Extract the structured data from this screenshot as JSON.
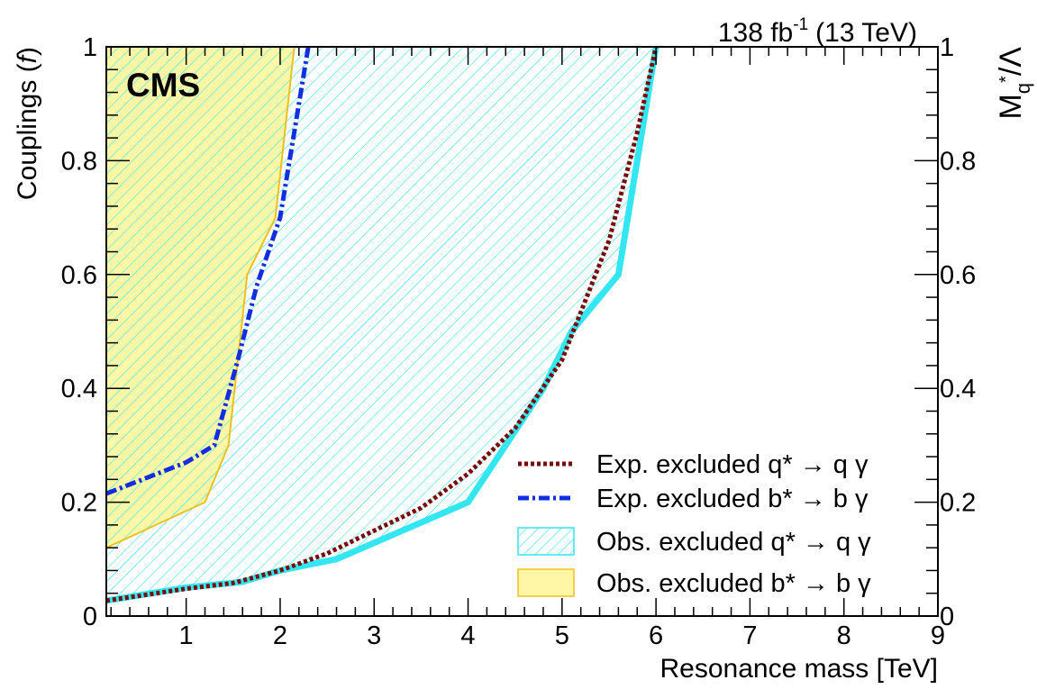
{
  "header": {
    "lumi_value": "138 fb",
    "lumi_exp": "-1",
    "energy": "(13 TeV)",
    "experiment": "CMS"
  },
  "axes": {
    "xlabel": "Resonance mass [TeV]",
    "ylabel_main": "Couplings (",
    "ylabel_italic": "f",
    "ylabel_close": ")",
    "ylabel_right_M": "M",
    "ylabel_right_q": "q",
    "ylabel_right_star": "*",
    "ylabel_right_rest": "/Λ",
    "x_ticks": [
      "1",
      "2",
      "3",
      "4",
      "5",
      "6",
      "7",
      "8",
      "9"
    ],
    "y_ticks": [
      "0",
      "0.2",
      "0.4",
      "0.6",
      "0.8",
      "1"
    ],
    "y2_ticks": [
      "0",
      "0.2",
      "0.4",
      "0.6",
      "0.8",
      "1"
    ]
  },
  "legend": [
    {
      "label": "Exp. excluded q* → q γ",
      "style": "dotted",
      "color": "#7a0b0b"
    },
    {
      "label": "Exp. excluded b* → b γ",
      "style": "dashdot",
      "color": "#1030e0"
    },
    {
      "label": "Obs. excluded q* → q γ",
      "style": "hatch",
      "color": "#33e6f2"
    },
    {
      "label": "Obs. excluded b* → b γ",
      "style": "fill",
      "color": "#fff7a6"
    }
  ],
  "colors": {
    "cyan": "#33e6f2",
    "yellow_fill": "#fff7a6",
    "yellow_line": "#f0c020",
    "exp_q": "#7a0b0b",
    "exp_b": "#1030e0"
  },
  "chart_data": {
    "type": "area",
    "xlim": [
      0.15,
      9
    ],
    "ylim": [
      0,
      1
    ],
    "y2lim": [
      0,
      1
    ],
    "series": [
      {
        "name": "Obs. excluded q* → q γ",
        "x": [
          0.15,
          1.0,
          1.6,
          2.0,
          2.6,
          3.3,
          4.0,
          4.8,
          5.1,
          5.6,
          6.0
        ],
        "y": [
          0.027,
          0.05,
          0.06,
          0.08,
          0.1,
          0.15,
          0.2,
          0.4,
          0.5,
          0.6,
          1.0
        ]
      },
      {
        "name": "Obs. excluded b* → b γ",
        "x": [
          0.15,
          1.2,
          1.45,
          1.65,
          1.95,
          2.15
        ],
        "y": [
          0.12,
          0.2,
          0.3,
          0.6,
          0.7,
          1.0
        ]
      },
      {
        "name": "Exp. excluded q* → q γ",
        "x": [
          0.15,
          0.6,
          1.0,
          1.5,
          2.0,
          2.5,
          3.0,
          3.5,
          4.0,
          4.5,
          5.0,
          5.5,
          5.8,
          6.0
        ],
        "y": [
          0.027,
          0.038,
          0.048,
          0.058,
          0.08,
          0.11,
          0.15,
          0.19,
          0.25,
          0.33,
          0.45,
          0.66,
          0.85,
          1.0
        ]
      },
      {
        "name": "Exp. excluded b* → b γ",
        "x": [
          0.15,
          1.0,
          1.3,
          1.55,
          1.75,
          2.0,
          2.15,
          2.3
        ],
        "y": [
          0.215,
          0.27,
          0.3,
          0.45,
          0.58,
          0.7,
          0.85,
          1.0
        ]
      }
    ]
  }
}
